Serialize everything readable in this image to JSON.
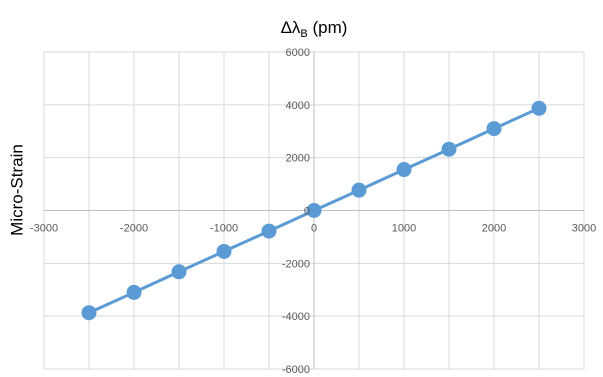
{
  "chart_data": {
    "type": "scatter",
    "title": {
      "prefix": "Δλ",
      "subscript": "B",
      "suffix": " (pm)"
    },
    "ylabel": "Micro-Strain",
    "xlim": [
      -3000,
      3000
    ],
    "ylim": [
      -6000,
      6000
    ],
    "x_ticks": [
      -3000,
      -2000,
      -1000,
      0,
      1000,
      2000,
      3000
    ],
    "y_ticks": [
      -6000,
      -4000,
      -2000,
      0,
      2000,
      4000,
      6000
    ],
    "x_tick_labels": [
      "-3000",
      "-2000",
      "-1000",
      "0",
      "1000",
      "2000",
      "3000"
    ],
    "y_tick_labels": [
      "-6000",
      "-4000",
      "-2000",
      "0",
      "2000",
      "4000",
      "6000"
    ],
    "minor_x_gridlines": [
      -2500,
      -1500,
      -500,
      500,
      1500,
      2500
    ],
    "grid": true,
    "series": [
      {
        "color": "#5B9BD5",
        "x": [
          -2500,
          -2000,
          -1500,
          -1000,
          -500,
          0,
          500,
          1000,
          1500,
          2000,
          2500
        ],
        "y": [
          -3870,
          -3100,
          -2320,
          -1550,
          -780,
          0,
          770,
          1550,
          2320,
          3100,
          3870
        ]
      }
    ],
    "colors": {
      "grid": "#D9D9D9",
      "axis": "#BFBFBF",
      "tick_text": "#595959"
    }
  }
}
